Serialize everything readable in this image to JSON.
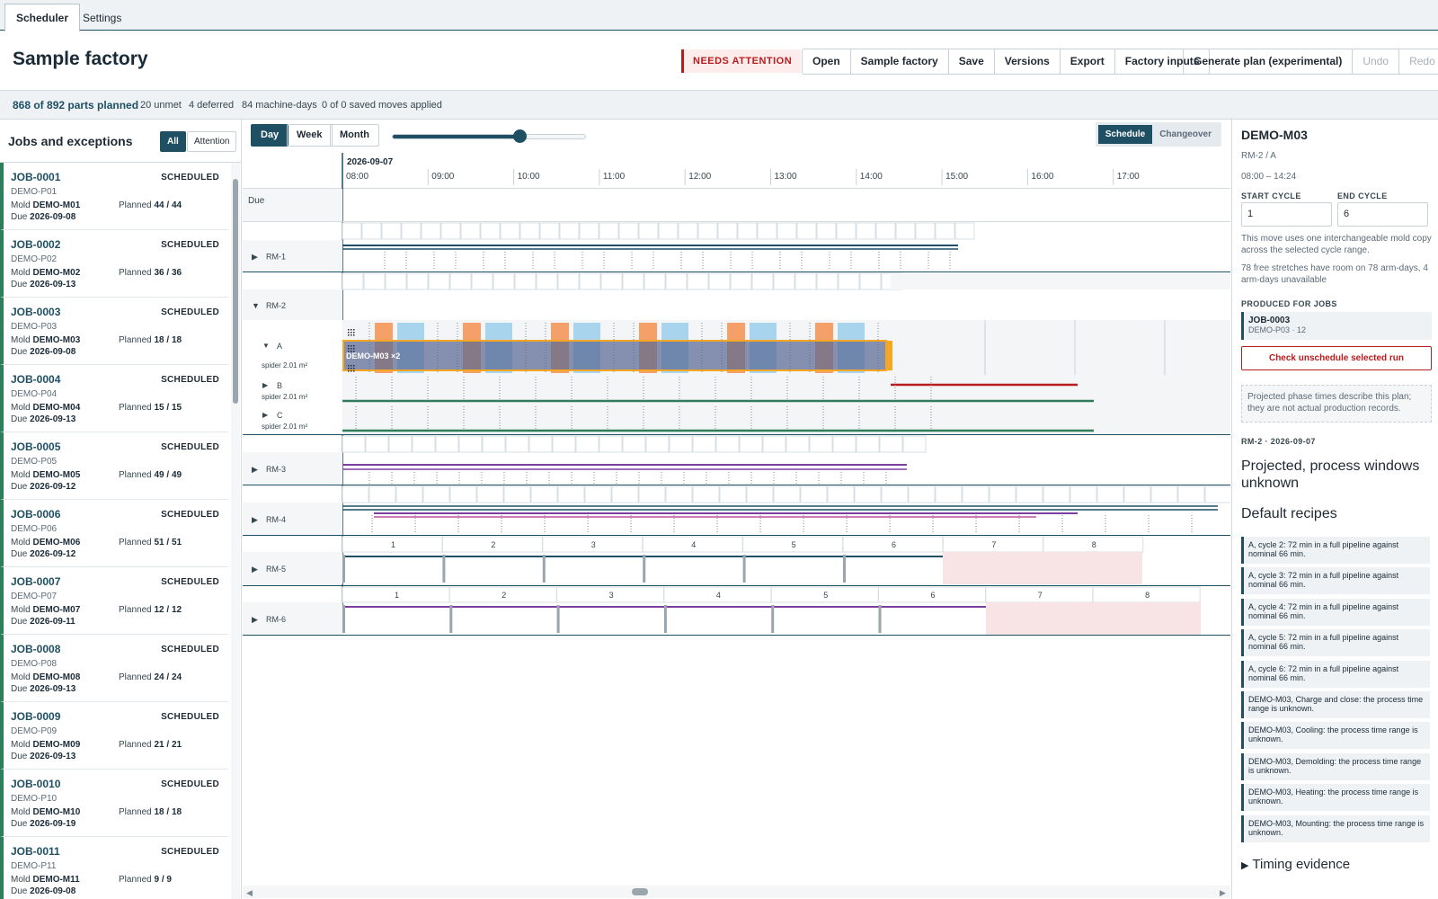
{
  "tabs": [
    "Scheduler",
    "Settings"
  ],
  "header": {
    "title": "Sample factory",
    "badge": "NEEDS ATTENTION",
    "buttons": [
      "Open",
      "Sample factory",
      "Save",
      "Versions",
      "Export",
      "Factory inputs"
    ],
    "generate": "Generate plan (experimental)",
    "undo": "Undo",
    "redo": "Redo"
  },
  "summary": {
    "planned": "868 of 892 parts planned",
    "unmet": "20 unmet",
    "deferred": "4 deferred",
    "machine_days": "84 machine-days",
    "moves": "0 of 0 saved moves applied"
  },
  "jobs_panel": {
    "title": "Jobs and exceptions",
    "filters": [
      "All",
      "Attention"
    ],
    "mold_label": "Mold",
    "planned_label": "Planned",
    "due_label": "Due",
    "jobs": [
      {
        "id": "JOB-0001",
        "status": "SCHEDULED",
        "part": "DEMO-P01",
        "mold": "DEMO-M01",
        "planned": "44 / 44",
        "due": "2026-09-08"
      },
      {
        "id": "JOB-0002",
        "status": "SCHEDULED",
        "part": "DEMO-P02",
        "mold": "DEMO-M02",
        "planned": "36 / 36",
        "due": "2026-09-13"
      },
      {
        "id": "JOB-0003",
        "status": "SCHEDULED",
        "part": "DEMO-P03",
        "mold": "DEMO-M03",
        "planned": "18 / 18",
        "due": "2026-09-08"
      },
      {
        "id": "JOB-0004",
        "status": "SCHEDULED",
        "part": "DEMO-P04",
        "mold": "DEMO-M04",
        "planned": "15 / 15",
        "due": "2026-09-13"
      },
      {
        "id": "JOB-0005",
        "status": "SCHEDULED",
        "part": "DEMO-P05",
        "mold": "DEMO-M05",
        "planned": "49 / 49",
        "due": "2026-09-12"
      },
      {
        "id": "JOB-0006",
        "status": "SCHEDULED",
        "part": "DEMO-P06",
        "mold": "DEMO-M06",
        "planned": "51 / 51",
        "due": "2026-09-12"
      },
      {
        "id": "JOB-0007",
        "status": "SCHEDULED",
        "part": "DEMO-P07",
        "mold": "DEMO-M07",
        "planned": "12 / 12",
        "due": "2026-09-11"
      },
      {
        "id": "JOB-0008",
        "status": "SCHEDULED",
        "part": "DEMO-P08",
        "mold": "DEMO-M08",
        "planned": "24 / 24",
        "due": "2026-09-13"
      },
      {
        "id": "JOB-0009",
        "status": "SCHEDULED",
        "part": "DEMO-P09",
        "mold": "DEMO-M09",
        "planned": "21 / 21",
        "due": "2026-09-13"
      },
      {
        "id": "JOB-0010",
        "status": "SCHEDULED",
        "part": "DEMO-P10",
        "mold": "DEMO-M10",
        "planned": "18 / 18",
        "due": "2026-09-19"
      },
      {
        "id": "JOB-0011",
        "status": "SCHEDULED",
        "part": "DEMO-P11",
        "mold": "DEMO-M11",
        "planned": "9 / 9",
        "due": "2026-09-08"
      }
    ]
  },
  "toolbar": {
    "views": [
      "Day",
      "Week",
      "Month"
    ],
    "zoom": 0.66,
    "modes": [
      "Schedule",
      "Changeover"
    ]
  },
  "timeline": {
    "date": "2026-09-07",
    "hours": [
      "08:00",
      "09:00",
      "10:00",
      "11:00",
      "12:00",
      "13:00",
      "14:00",
      "15:00",
      "16:00",
      "17:00"
    ],
    "due_label": "Due",
    "machines": [
      "RM-1",
      "RM-2",
      "RM-3",
      "RM-4",
      "RM-5",
      "RM-6"
    ],
    "arms": [
      {
        "name": "A",
        "desc": "spider 2.01 m²"
      },
      {
        "name": "B",
        "desc": "spider 2.01 m²"
      },
      {
        "name": "C",
        "desc": "spider 2.01 m²"
      }
    ],
    "selected_run": "DEMO-M03 ×2",
    "cycle_numbers": [
      "1",
      "2",
      "3",
      "4",
      "5",
      "6",
      "7",
      "8"
    ]
  },
  "details": {
    "title": "DEMO-M03",
    "location": "RM-2 / A",
    "window": "08:00 – 14:24",
    "start_cycle_label": "START CYCLE",
    "end_cycle_label": "END CYCLE",
    "start_cycle": "1",
    "end_cycle": "6",
    "note1": "This move uses one interchangeable mold copy across the selected cycle range.",
    "note2": "78 free stretches have room on 78 arm-days, 4 arm-days unavailable",
    "produced_label": "PRODUCED FOR JOBS",
    "produced_job": "JOB-0003",
    "produced_detail": "DEMO-P03 · 12",
    "unschedule": "Check unschedule selected run",
    "projected_note": "Projected phase times describe this plan; they are not actual production records.",
    "day_label": "RM-2 · 2026-09-07",
    "projected_heading": "Projected, process windows unknown",
    "recipes_heading": "Default recipes",
    "messages": [
      "A, cycle 2: 72 min in a full pipeline against nominal 66 min.",
      "A, cycle 3: 72 min in a full pipeline against nominal 66 min.",
      "A, cycle 4: 72 min in a full pipeline against nominal 66 min.",
      "A, cycle 5: 72 min in a full pipeline against nominal 66 min.",
      "A, cycle 6: 72 min in a full pipeline against nominal 66 min.",
      "DEMO-M03, Charge and close: the process time range is unknown.",
      "DEMO-M03, Cooling: the process time range is unknown.",
      "DEMO-M03, Demolding: the process time range is unknown.",
      "DEMO-M03, Heating: the process time range is unknown.",
      "DEMO-M03, Mounting: the process time range is unknown."
    ],
    "timing_evidence": "Timing evidence"
  }
}
